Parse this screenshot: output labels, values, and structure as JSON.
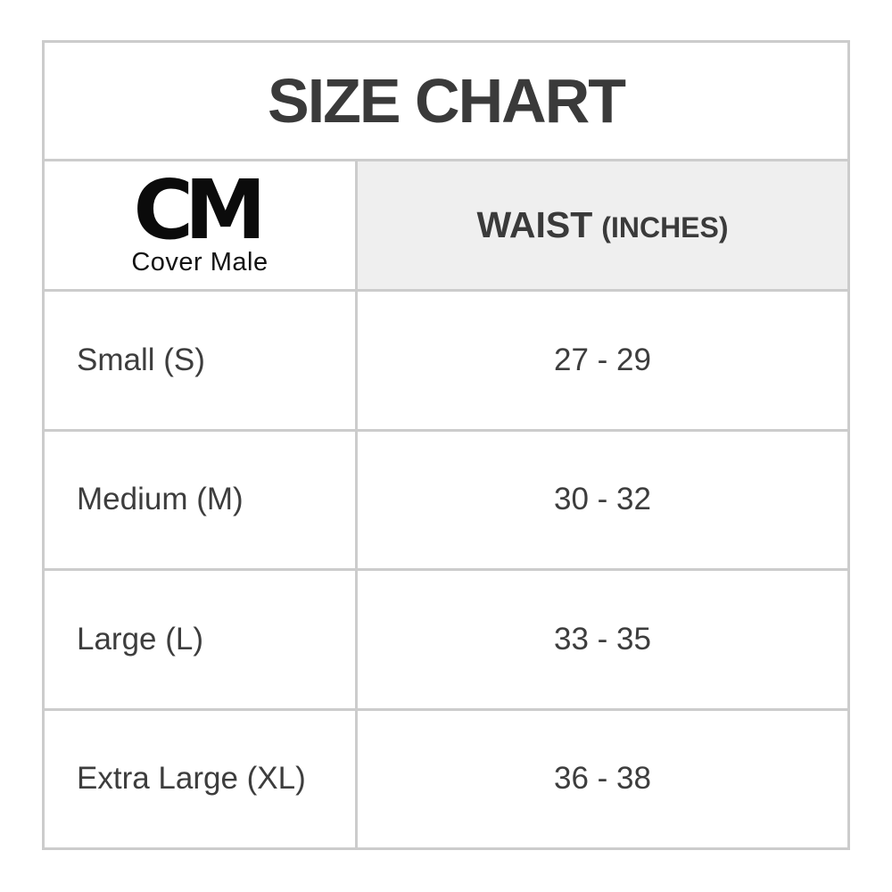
{
  "title": "SIZE CHART",
  "logo": {
    "initials": "CM",
    "name": "Cover Male"
  },
  "header": {
    "column": "WAIST",
    "unit": "(INCHES)"
  },
  "rows": [
    {
      "size": "Small (S)",
      "waist": "27 - 29"
    },
    {
      "size": "Medium (M)",
      "waist": "30 - 32"
    },
    {
      "size": "Large (L)",
      "waist": "33 - 35"
    },
    {
      "size": "Extra Large (XL)",
      "waist": "36 - 38"
    }
  ],
  "colors": {
    "border": "#cccccc",
    "header_bg": "#efefef",
    "text": "#3d3d3d",
    "title_text": "#3a3a3a",
    "logo": "#0b0b0b",
    "background": "#ffffff"
  }
}
